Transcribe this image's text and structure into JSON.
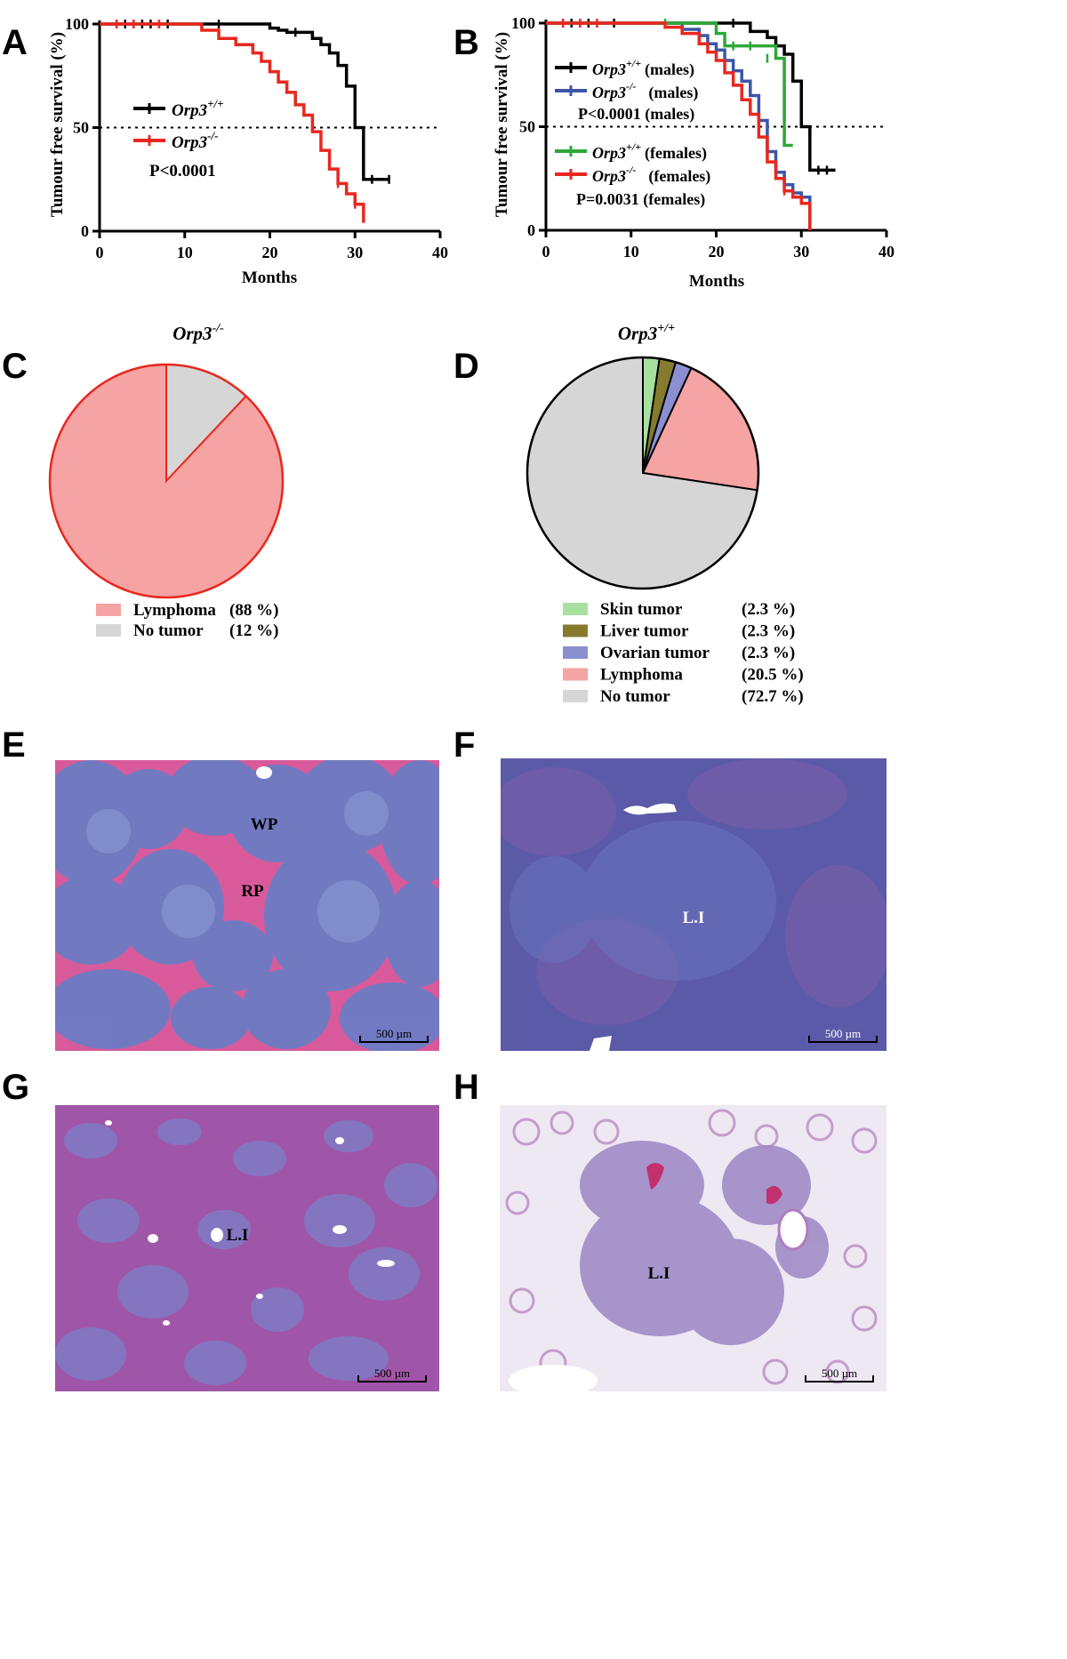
{
  "panels": {
    "a": "A",
    "b": "B",
    "c": "C",
    "d": "D",
    "e": "E",
    "f": "F",
    "g": "G",
    "h": "H"
  },
  "chart_data": [
    {
      "id": "A",
      "type": "line",
      "ylabel": "Tumour free survival (%)",
      "xlabel": "Months",
      "xlim": [
        0,
        40
      ],
      "ylim": [
        0,
        100
      ],
      "xticks": [
        0,
        10,
        20,
        30,
        40
      ],
      "yticks": [
        0,
        50,
        100
      ],
      "reference_line_y": 50,
      "series": [
        {
          "label_base": "Orp3",
          "label_sup": "+/+",
          "color": "#000000",
          "points": [
            [
              0,
              100
            ],
            [
              19,
              100
            ],
            [
              20,
              98
            ],
            [
              21,
              97
            ],
            [
              22,
              96
            ],
            [
              24,
              96
            ],
            [
              25,
              93
            ],
            [
              26,
              90
            ],
            [
              27,
              86
            ],
            [
              28,
              80
            ],
            [
              29,
              70
            ],
            [
              30,
              62
            ],
            [
              30,
              50
            ],
            [
              31,
              36
            ],
            [
              31,
              25
            ],
            [
              34,
              25
            ]
          ],
          "censor": [
            [
              3,
              100
            ],
            [
              5,
              100
            ],
            [
              6,
              100
            ],
            [
              8,
              100
            ],
            [
              14,
              100
            ],
            [
              23,
              96
            ],
            [
              32,
              25
            ],
            [
              34,
              25
            ]
          ]
        },
        {
          "label_base": "Orp3",
          "label_sup": "-/-",
          "color": "#e8281e",
          "points": [
            [
              0,
              100
            ],
            [
              11,
              100
            ],
            [
              12,
              97
            ],
            [
              14,
              93
            ],
            [
              16,
              90
            ],
            [
              18,
              86
            ],
            [
              19,
              82
            ],
            [
              20,
              77
            ],
            [
              21,
              72
            ],
            [
              22,
              67
            ],
            [
              23,
              61
            ],
            [
              24,
              56
            ],
            [
              25,
              48
            ],
            [
              26,
              39
            ],
            [
              27,
              30
            ],
            [
              28,
              23
            ],
            [
              29,
              18
            ],
            [
              30,
              13
            ],
            [
              31,
              8
            ],
            [
              31,
              4
            ]
          ],
          "censor": [
            [
              2,
              100
            ],
            [
              4,
              100
            ],
            [
              7,
              100
            ],
            [
              28,
              23
            ],
            [
              30,
              13
            ]
          ]
        }
      ],
      "annotation_p": "P<0.0001"
    },
    {
      "id": "B",
      "type": "line",
      "ylabel": "Tumour free survival (%)",
      "xlabel": "Months",
      "xlim": [
        0,
        40
      ],
      "ylim": [
        0,
        100
      ],
      "xticks": [
        0,
        10,
        20,
        30,
        40
      ],
      "yticks": [
        0,
        50,
        100
      ],
      "reference_line_y": 50,
      "series": [
        {
          "label_base": "Orp3",
          "label_sup": "+/+",
          "label_suffix": "(males)",
          "color": "#000000",
          "points": [
            [
              0,
              100
            ],
            [
              23,
              100
            ],
            [
              24,
              96
            ],
            [
              26,
              93
            ],
            [
              27,
              89
            ],
            [
              28,
              85
            ],
            [
              29,
              72
            ],
            [
              30,
              50
            ],
            [
              31,
              29
            ],
            [
              34,
              29
            ]
          ],
          "censor": [
            [
              3,
              100
            ],
            [
              5,
              100
            ],
            [
              8,
              100
            ],
            [
              22,
              100
            ],
            [
              27,
              89
            ],
            [
              32,
              29
            ],
            [
              33,
              29
            ]
          ]
        },
        {
          "label_base": "Orp3",
          "label_suffix": "(males)",
          "label_sup": "-/-",
          "color": "#3c55a8",
          "points": [
            [
              0,
              100
            ],
            [
              15,
              100
            ],
            [
              16,
              97
            ],
            [
              18,
              94
            ],
            [
              19,
              90
            ],
            [
              20,
              87
            ],
            [
              21,
              82
            ],
            [
              22,
              77
            ],
            [
              23,
              72
            ],
            [
              24,
              65
            ],
            [
              25,
              53
            ],
            [
              26,
              38
            ],
            [
              27,
              28
            ],
            [
              28,
              22
            ],
            [
              29,
              18
            ],
            [
              30,
              16
            ],
            [
              31,
              16
            ],
            [
              31,
              0
            ]
          ],
          "censor": [
            [
              16,
              97
            ],
            [
              30,
              16
            ]
          ]
        },
        {
          "label_base": "Orp3",
          "label_sup": "+/+",
          "label_suffix": "(females)",
          "color": "#2ca838",
          "points": [
            [
              0,
              100
            ],
            [
              19,
              100
            ],
            [
              20,
              95
            ],
            [
              21,
              89
            ],
            [
              26,
              89
            ],
            [
              27,
              83
            ],
            [
              28,
              70
            ],
            [
              28,
              41
            ],
            [
              29,
              41
            ]
          ],
          "censor": [
            [
              14,
              100
            ],
            [
              22,
              89
            ],
            [
              24,
              89
            ],
            [
              26,
              83
            ]
          ]
        },
        {
          "label_base": "Orp3",
          "label_sup": "-/-",
          "label_suffix": "(females)",
          "color": "#e8281e",
          "points": [
            [
              0,
              100
            ],
            [
              13,
              100
            ],
            [
              14,
              98
            ],
            [
              16,
              95
            ],
            [
              18,
              90
            ],
            [
              19,
              86
            ],
            [
              20,
              82
            ],
            [
              21,
              76
            ],
            [
              22,
              70
            ],
            [
              23,
              63
            ],
            [
              24,
              56
            ],
            [
              25,
              45
            ],
            [
              26,
              33
            ],
            [
              27,
              25
            ],
            [
              28,
              19
            ],
            [
              29,
              16
            ],
            [
              30,
              13
            ],
            [
              31,
              10
            ],
            [
              31,
              0
            ]
          ],
          "censor": [
            [
              2,
              100
            ],
            [
              4,
              100
            ],
            [
              6,
              100
            ],
            [
              28,
              19
            ]
          ]
        }
      ],
      "annotation_p_males": "P<0.0001 (males)",
      "annotation_p_females": "P=0.0031 (females)"
    },
    {
      "id": "C",
      "type": "pie",
      "title_base": "Orp3",
      "title_sup": "-/-",
      "slices": [
        {
          "label": "Lymphoma",
          "pct_text": "(88 %)",
          "value": 88,
          "color": "#f5a3a3"
        },
        {
          "label": "No tumor",
          "pct_text": "(12 %)",
          "value": 12,
          "color": "#d6d6d6"
        }
      ],
      "outline_color": "#e8281e"
    },
    {
      "id": "D",
      "type": "pie",
      "title_base": "Orp3",
      "title_sup": "+/+",
      "slices": [
        {
          "label": "Skin tumor",
          "pct_text": "(2.3 %)",
          "value": 2.3,
          "color": "#a8e0a0"
        },
        {
          "label": "Liver tumor",
          "pct_text": "(2.3 %)",
          "value": 2.3,
          "color": "#857a2e"
        },
        {
          "label": "Ovarian tumor",
          "pct_text": "(2.3 %)",
          "value": 2.3,
          "color": "#8b8fd0"
        },
        {
          "label": "Lymphoma",
          "pct_text": "(20.5 %)",
          "value": 20.5,
          "color": "#f5a3a3"
        },
        {
          "label": "No tumor",
          "pct_text": "(72.7 %)",
          "value": 72.7,
          "color": "#d6d6d6"
        }
      ],
      "outline_color": "#000000"
    }
  ],
  "histology": {
    "e": {
      "labels": [
        "WP",
        "RP"
      ],
      "scale": "500 µm"
    },
    "f": {
      "labels": [
        "L.I"
      ],
      "scale": "500 µm"
    },
    "g": {
      "labels": [
        "L.I"
      ],
      "scale": "500 µm"
    },
    "h": {
      "labels": [
        "L.I"
      ],
      "scale": "500 µm"
    }
  }
}
